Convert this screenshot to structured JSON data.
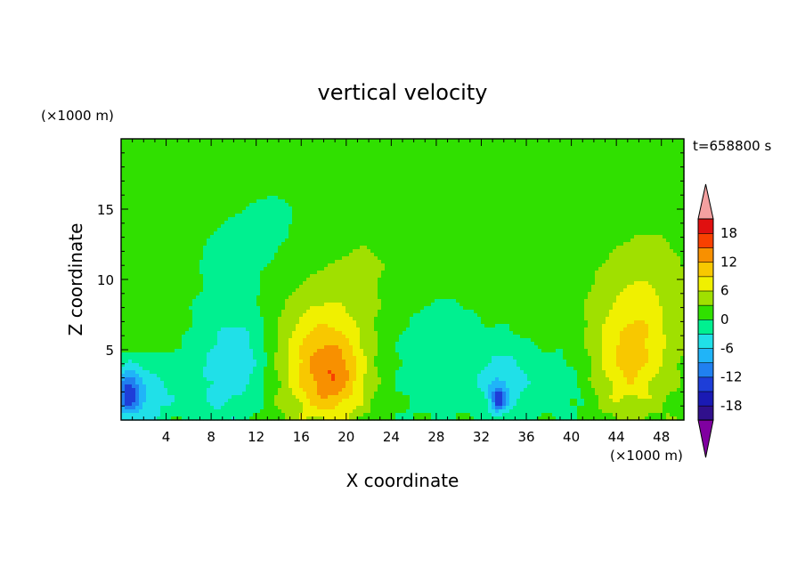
{
  "chart_data": {
    "type": "heatmap",
    "title": "vertical velocity",
    "xlabel": "X coordinate",
    "ylabel": "Z coordinate",
    "x_unit": "(×1000 m)",
    "y_unit": "(×1000 m)",
    "time_label": "t=658800 s",
    "xlim": [
      0,
      50
    ],
    "ylim": [
      0,
      20
    ],
    "xticks": [
      4,
      8,
      12,
      16,
      20,
      24,
      28,
      32,
      36,
      40,
      44,
      48
    ],
    "yticks": [
      5,
      10,
      15
    ],
    "colorbar": {
      "ticks": [
        18,
        12,
        6,
        0,
        -6,
        -12,
        -18
      ],
      "levels": [
        -21,
        -18,
        -15,
        -12,
        -9,
        -6,
        -3,
        0,
        3,
        6,
        9,
        12,
        15,
        18,
        21
      ],
      "colors": [
        "#8000a0",
        "#30108c",
        "#1a1ab4",
        "#1e3ed8",
        "#2080f0",
        "#20b4f8",
        "#20e0e8",
        "#00f090",
        "#30e000",
        "#a0e000",
        "#f0f000",
        "#f8c800",
        "#f89000",
        "#f84000",
        "#e01010",
        "#f4a0a0"
      ],
      "extend": "both"
    },
    "features": [
      {
        "x": 17.5,
        "z": 4.2,
        "peak": 8.5,
        "sx": 3.0,
        "sz": 3.4
      },
      {
        "x": 19.0,
        "z": 3.0,
        "peak": 6.5,
        "sx": 1.8,
        "sz": 2.0
      },
      {
        "x": 44.8,
        "z": 3.8,
        "peak": 6.5,
        "sx": 2.6,
        "sz": 2.8
      },
      {
        "x": 46.0,
        "z": 7.0,
        "peak": 3.5,
        "sx": 2.0,
        "sz": 3.0
      },
      {
        "x": 2.0,
        "z": 1.8,
        "peak": -6.5,
        "sx": 1.8,
        "sz": 1.6
      },
      {
        "x": 0.6,
        "z": 2.0,
        "peak": -11.0,
        "sx": 0.7,
        "sz": 1.2
      },
      {
        "x": 9.5,
        "z": 2.5,
        "peak": -4.5,
        "sx": 2.8,
        "sz": 2.5
      },
      {
        "x": 10.5,
        "z": 5.5,
        "peak": -3.5,
        "sx": 2.0,
        "sz": 2.0
      },
      {
        "x": 28.0,
        "z": 4.5,
        "peak": -3.8,
        "sx": 3.0,
        "sz": 3.0
      },
      {
        "x": 34.0,
        "z": 2.6,
        "peak": -6.5,
        "sx": 1.6,
        "sz": 1.8
      },
      {
        "x": 33.5,
        "z": 1.5,
        "peak": -10.0,
        "sx": 0.5,
        "sz": 0.6
      },
      {
        "x": 39.5,
        "z": 2.5,
        "peak": -3.2,
        "sx": 2.0,
        "sz": 2.2
      },
      {
        "x": 12.5,
        "z": 13.0,
        "peak": -2.0,
        "sx": 5.0,
        "sz": 5.0
      },
      {
        "x": 32.0,
        "z": 12.5,
        "peak": 1.6,
        "sx": 2.2,
        "sz": 1.8
      },
      {
        "x": 36.0,
        "z": 15.0,
        "peak": 1.6,
        "sx": 1.2,
        "sz": 1.5
      },
      {
        "x": 22.0,
        "z": 13.0,
        "peak": 1.4,
        "sx": 3.5,
        "sz": 3.0
      },
      {
        "x": 6.0,
        "z": 16.5,
        "peak": 1.3,
        "sx": 6.0,
        "sz": 2.0
      },
      {
        "x": 1.0,
        "z": 12.5,
        "peak": 1.4,
        "sx": 2.0,
        "sz": 5.0
      },
      {
        "x": 48.5,
        "z": 11.0,
        "peak": 1.4,
        "sx": 3.0,
        "sz": 5.0
      },
      {
        "x": 20.0,
        "z": 9.0,
        "peak": 1.5,
        "sx": 5.0,
        "sz": 3.0
      },
      {
        "x": 44.0,
        "z": 9.5,
        "peak": 1.5,
        "sx": 4.0,
        "sz": 3.0
      }
    ]
  }
}
